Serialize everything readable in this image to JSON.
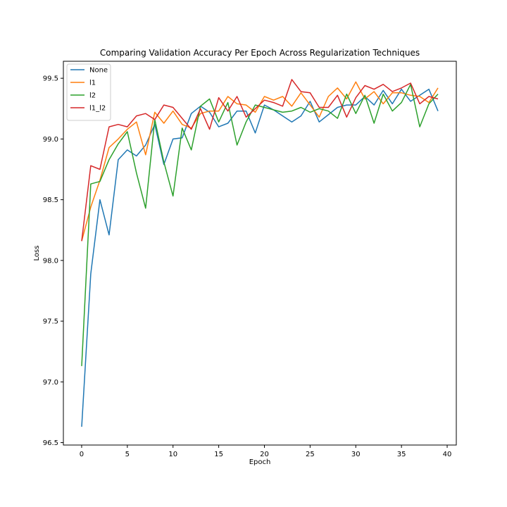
{
  "chart_data": {
    "type": "line",
    "title": "Comparing Validation Accuracy Per Epoch Across Regularization Techniques",
    "xlabel": "Epoch",
    "ylabel": "Loss",
    "xlim": [
      -2,
      41
    ],
    "ylim": [
      96.48,
      99.64
    ],
    "xticks": [
      0,
      5,
      10,
      15,
      20,
      25,
      30,
      35,
      40
    ],
    "yticks": [
      96.5,
      97.0,
      97.5,
      98.0,
      98.5,
      99.0,
      99.5
    ],
    "ytick_labels": [
      "96.5",
      "97.0",
      "97.5",
      "98.0",
      "98.5",
      "99.0",
      "99.5"
    ],
    "grid": false,
    "legend_position": "top-left",
    "x": [
      0,
      1,
      2,
      3,
      4,
      5,
      6,
      7,
      8,
      9,
      10,
      11,
      12,
      13,
      14,
      15,
      16,
      17,
      18,
      19,
      20,
      21,
      22,
      23,
      24,
      25,
      26,
      27,
      28,
      29,
      30,
      31,
      32,
      33,
      34,
      35,
      36,
      37,
      38,
      39
    ],
    "series": [
      {
        "name": "None",
        "color": "#1f77b4",
        "values": [
          96.63,
          97.89,
          98.5,
          98.21,
          98.83,
          98.91,
          98.86,
          98.95,
          99.12,
          98.79,
          99.0,
          99.01,
          99.21,
          99.27,
          99.22,
          99.1,
          99.13,
          99.23,
          99.23,
          99.05,
          99.28,
          99.24,
          99.19,
          99.14,
          99.19,
          99.31,
          99.14,
          99.2,
          99.26,
          99.28,
          99.28,
          99.35,
          99.28,
          99.4,
          99.29,
          99.41,
          99.31,
          99.36,
          99.41,
          99.23
        ]
      },
      {
        "name": "l1",
        "color": "#ff7f0e",
        "values": [
          98.16,
          98.44,
          98.66,
          98.93,
          99.0,
          99.08,
          99.14,
          98.87,
          99.22,
          99.13,
          99.23,
          99.12,
          99.09,
          99.21,
          99.23,
          99.23,
          99.35,
          99.29,
          99.28,
          99.22,
          99.35,
          99.32,
          99.35,
          99.27,
          99.38,
          99.28,
          99.18,
          99.35,
          99.42,
          99.33,
          99.47,
          99.33,
          99.39,
          99.29,
          99.38,
          99.38,
          99.36,
          99.35,
          99.3,
          99.42
        ]
      },
      {
        "name": "l2",
        "color": "#2ca02c",
        "values": [
          97.13,
          98.63,
          98.65,
          98.83,
          98.96,
          99.06,
          98.72,
          98.43,
          99.16,
          98.81,
          98.53,
          99.09,
          98.91,
          99.27,
          99.33,
          99.14,
          99.3,
          98.95,
          99.14,
          99.28,
          99.26,
          99.24,
          99.22,
          99.23,
          99.26,
          99.22,
          99.25,
          99.23,
          99.17,
          99.37,
          99.21,
          99.36,
          99.13,
          99.37,
          99.23,
          99.3,
          99.45,
          99.1,
          99.29,
          99.37
        ]
      },
      {
        "name": "l1_l2",
        "color": "#d62728",
        "values": [
          98.16,
          98.78,
          98.75,
          99.1,
          99.12,
          99.1,
          99.19,
          99.21,
          99.16,
          99.28,
          99.26,
          99.17,
          99.08,
          99.25,
          99.08,
          99.34,
          99.23,
          99.35,
          99.18,
          99.25,
          99.32,
          99.3,
          99.27,
          99.49,
          99.39,
          99.38,
          99.26,
          99.26,
          99.36,
          99.18,
          99.34,
          99.44,
          99.41,
          99.45,
          99.39,
          99.42,
          99.46,
          99.29,
          99.35,
          99.33
        ]
      }
    ]
  }
}
